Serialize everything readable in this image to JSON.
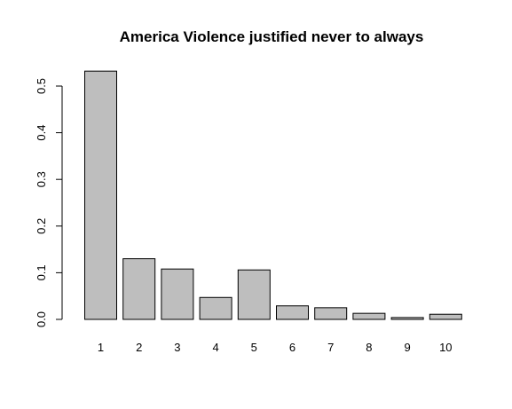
{
  "chart_data": {
    "type": "bar",
    "title": "America Violence justified never to always",
    "xlabel": "",
    "ylabel": "",
    "categories": [
      "1",
      "2",
      "3",
      "4",
      "5",
      "6",
      "7",
      "8",
      "9",
      "10"
    ],
    "values": [
      0.532,
      0.13,
      0.108,
      0.047,
      0.106,
      0.029,
      0.025,
      0.013,
      0.004,
      0.011
    ],
    "ylim": [
      0,
      0.5
    ],
    "yticks": [
      "0.0",
      "0.1",
      "0.2",
      "0.3",
      "0.4",
      "0.5"
    ],
    "grid": false,
    "bar_color": "#bebebe"
  }
}
